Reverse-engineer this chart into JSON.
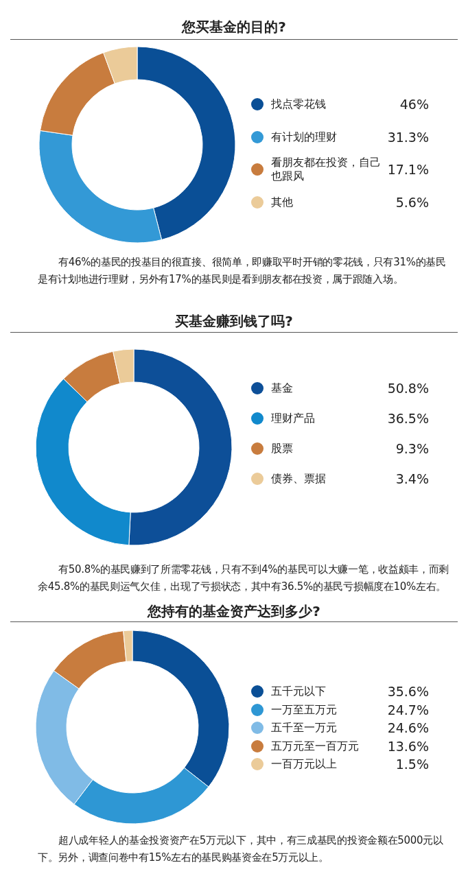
{
  "chart_data": [
    {
      "type": "donut",
      "title": "您买基金的目的?",
      "categories": [
        "找点零花钱",
        "有计划的理财",
        "看朋友都在投资，自己也跟风",
        "其他"
      ],
      "values": [
        46,
        31.3,
        17.1,
        5.6
      ],
      "value_labels": [
        "46%",
        "31.3%",
        "17.1%",
        "5.6%"
      ],
      "colors": [
        "#0a4f96",
        "#3399d6",
        "#c87c3e",
        "#ebcb99"
      ],
      "legend": "right",
      "annotations": [
        "有46%的基民的投基目的很直接、很简单，即赚取平时开销的零花钱，只有31%的基民是有计划地进行理财，另外有17%的基民则是看到朋友都在投资，属于跟随入场。"
      ]
    },
    {
      "type": "donut",
      "title": "买基金赚到钱了吗?",
      "categories": [
        "基金",
        "理财产品",
        "股票",
        "债券、票据"
      ],
      "values": [
        50.8,
        36.5,
        9.3,
        3.4
      ],
      "value_labels": [
        "50.8%",
        "36.5%",
        "9.3%",
        "3.4%"
      ],
      "colors": [
        "#0d4f98",
        "#1189cc",
        "#c87c3e",
        "#ebcb99"
      ],
      "legend": "right",
      "annotations": [
        "有50.8%的基民赚到了所需零花钱，只有不到4%的基民可以大赚一笔，收益颇丰，而剩余45.8%的基民则运气欠佳，出现了亏损状态，其中有36.5%的基民亏损幅度在10%左右。"
      ]
    },
    {
      "type": "donut",
      "title": "您持有的基金资产达到多少?",
      "categories": [
        "五千元以下",
        "一万至五万元",
        "五千至一万元",
        "五万元至一百万元",
        "一百万元以上"
      ],
      "values": [
        35.6,
        24.7,
        24.6,
        13.6,
        1.5
      ],
      "value_labels": [
        "35.6%",
        "24.7%",
        "24.6%",
        "13.6%",
        "1.5%"
      ],
      "colors": [
        "#0a4f96",
        "#2e97d4",
        "#80bbe6",
        "#c87c3e",
        "#ebcb99"
      ],
      "legend": "right",
      "annotations": [
        "超八成年轻人的基金投资资产在5万元以下，其中，有三成基民的投资金额在5000元以下。另外，调查问卷中有15%左右的基民购基资金在5万元以上。"
      ]
    }
  ]
}
